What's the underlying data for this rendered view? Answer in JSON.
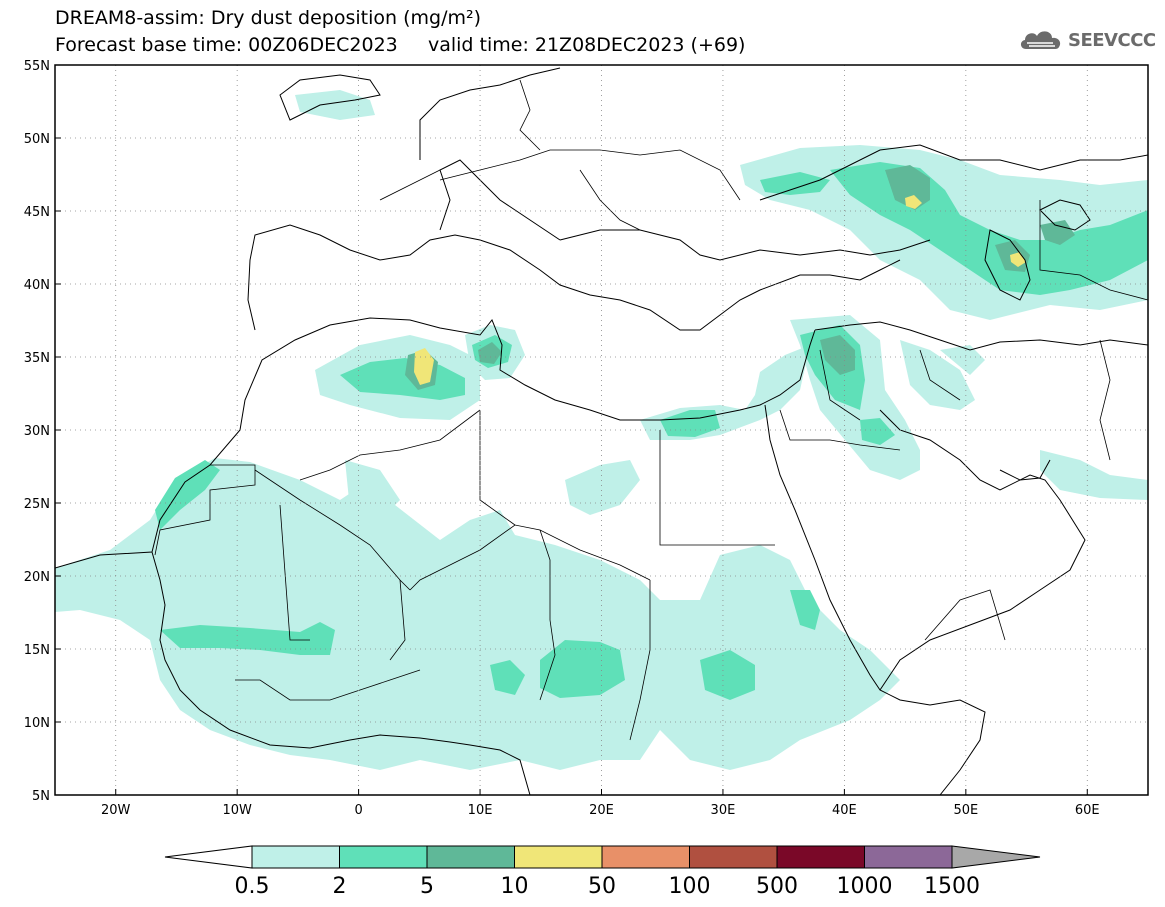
{
  "header": {
    "title": "DREAM8-assim: Dry dust deposition (mg/m²)",
    "base_time": "Forecast base time: 00Z06DEC2023",
    "valid_time": "valid time: 21Z08DEC2023 (+69)"
  },
  "logo": {
    "text": "SEEVCCC",
    "icon": "cloud-icon"
  },
  "map": {
    "lon_range": [
      -25,
      65
    ],
    "lat_range": [
      5,
      55
    ],
    "lat_labels": [
      "55N",
      "50N",
      "45N",
      "40N",
      "35N",
      "30N",
      "25N",
      "20N",
      "15N",
      "10N",
      "5N"
    ],
    "lon_labels": [
      "20W",
      "10W",
      "0",
      "10E",
      "20E",
      "30E",
      "40E",
      "50E",
      "60E"
    ]
  },
  "legend": {
    "labels": [
      "0.5",
      "2",
      "5",
      "10",
      "50",
      "100",
      "500",
      "1000",
      "1500"
    ],
    "colors": [
      "#bff0e8",
      "#5fe0b8",
      "#5fb898",
      "#f0e678",
      "#e89068",
      "#b05040",
      "#7a0828",
      "#8c6898",
      "#a8a8a8"
    ]
  }
}
